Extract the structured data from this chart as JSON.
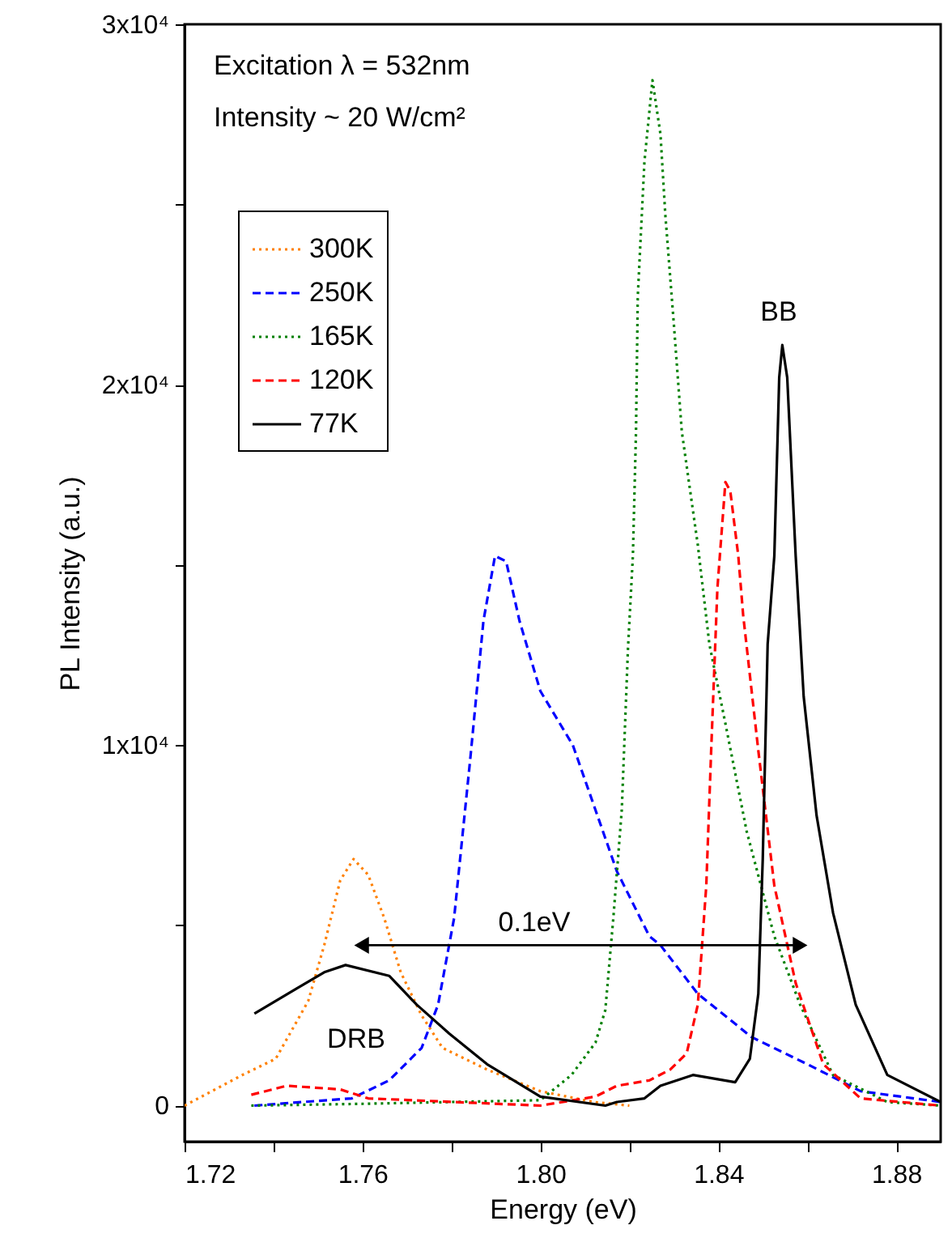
{
  "chart_data": {
    "type": "line",
    "xlabel": "Energy (eV)",
    "ylabel": "PL Intensity (a.u.)",
    "xlim": [
      1.72,
      1.89
    ],
    "ylim": [
      -1000,
      30000
    ],
    "xticks": [
      {
        "value": 1.72,
        "label": "1.72"
      },
      {
        "value": 1.74,
        "label": null
      },
      {
        "value": 1.76,
        "label": "1.76"
      },
      {
        "value": 1.78,
        "label": null
      },
      {
        "value": 1.8,
        "label": "1.80"
      },
      {
        "value": 1.82,
        "label": null
      },
      {
        "value": 1.84,
        "label": "1.84"
      },
      {
        "value": 1.86,
        "label": null
      },
      {
        "value": 1.88,
        "label": "1.88"
      }
    ],
    "yticks": [
      0,
      {
        "value": 5000,
        "label": null
      },
      {
        "value": 10000,
        "label": "1x10⁴"
      },
      {
        "value": 15000,
        "label": null
      },
      {
        "value": 20000,
        "label": "2x10⁴"
      },
      {
        "value": 25000,
        "label": null
      },
      {
        "value": 30000,
        "label": "3x10⁴"
      }
    ],
    "grid": false,
    "legend": "top left",
    "marker": "none",
    "annotations": [
      "Excitation λ = 532nm",
      "Intensity ~ 20 W/cm²",
      "BB",
      "DRB",
      "0.1eV"
    ],
    "series": [
      {
        "name": "300K",
        "color": "#ff8000",
        "line_style": "dotted",
        "x": [
          1.72,
          1.733,
          1.7405,
          1.7478,
          1.7514,
          1.755,
          1.758,
          1.7613,
          1.7649,
          1.7686,
          1.7733,
          1.778,
          1.788,
          1.8,
          1.812,
          1.82
        ],
        "values": [
          0,
          850,
          1300,
          2900,
          4450,
          6250,
          6840,
          6400,
          5200,
          3700,
          2500,
          1600,
          1000,
          400,
          100,
          0
        ]
      },
      {
        "name": "250K",
        "color": "#0000ff",
        "line_style": "dashed",
        "x": [
          1.7357,
          1.7576,
          1.766,
          1.7733,
          1.777,
          1.7806,
          1.7843,
          1.7872,
          1.7898,
          1.7923,
          1.7953,
          1.8,
          1.8073,
          1.8172,
          1.8245,
          1.827,
          1.8354,
          1.8475,
          1.86,
          1.872,
          1.89
        ],
        "values": [
          0,
          200,
          700,
          1600,
          2800,
          5200,
          9700,
          13450,
          15250,
          15100,
          13450,
          11500,
          10000,
          6500,
          4700,
          4450,
          3100,
          1900,
          1150,
          400,
          100
        ]
      },
      {
        "name": "165K",
        "color": "#008000",
        "line_style": "dotted",
        "x": [
          1.735,
          1.76,
          1.8,
          1.807,
          1.8124,
          1.8146,
          1.8164,
          1.8183,
          1.8197,
          1.8208,
          1.8215,
          1.8219,
          1.8234,
          1.8252,
          1.827,
          1.8281,
          1.83,
          1.8318,
          1.8354,
          1.838,
          1.8416,
          1.8464,
          1.8526,
          1.8584,
          1.8658,
          1.878,
          1.89
        ],
        "values": [
          0,
          50,
          150,
          850,
          1750,
          2650,
          5200,
          8200,
          12700,
          15250,
          18700,
          22450,
          26200,
          28450,
          26950,
          24700,
          21700,
          18700,
          15550,
          12800,
          10600,
          7600,
          4700,
          2800,
          850,
          100,
          0
        ]
      },
      {
        "name": "120K",
        "color": "#ff0000",
        "line_style": "dashed",
        "x": [
          1.735,
          1.743,
          1.755,
          1.7613,
          1.8,
          1.8124,
          1.8172,
          1.8245,
          1.8292,
          1.8329,
          1.8354,
          1.8373,
          1.8384,
          1.8398,
          1.8416,
          1.8427,
          1.8445,
          1.8456,
          1.849,
          1.8526,
          1.8574,
          1.8636,
          1.872,
          1.89
        ],
        "values": [
          300,
          550,
          450,
          200,
          0,
          250,
          550,
          700,
          1000,
          1450,
          2800,
          6100,
          9850,
          14350,
          17300,
          17050,
          15250,
          13600,
          9850,
          6100,
          3400,
          1150,
          200,
          0
        ]
      },
      {
        "name": "77K",
        "color": "#000000",
        "line_style": "solid",
        "x": [
          1.7357,
          1.7452,
          1.7514,
          1.7562,
          1.766,
          1.7722,
          1.7795,
          1.788,
          1.8,
          1.8146,
          1.8172,
          1.8234,
          1.827,
          1.8343,
          1.8438,
          1.8471,
          1.849,
          1.85,
          1.8511,
          1.8526,
          1.8537,
          1.8544,
          1.8555,
          1.8574,
          1.8592,
          1.8621,
          1.8658,
          1.8709,
          1.878,
          1.89
        ],
        "values": [
          2550,
          3250,
          3700,
          3900,
          3600,
          2800,
          2000,
          1150,
          250,
          0,
          100,
          200,
          550,
          850,
          650,
          1300,
          3100,
          6850,
          12800,
          15250,
          20200,
          21100,
          20200,
          15250,
          11350,
          8050,
          5350,
          2800,
          850,
          100
        ]
      },
      {
        "type": "line",
        "color": "#000000",
        "line_style": "solid",
        "marker": "triangle",
        "x": [
          1.7598,
          1.8584
        ],
        "values": [
          4450,
          4450
        ]
      }
    ]
  }
}
